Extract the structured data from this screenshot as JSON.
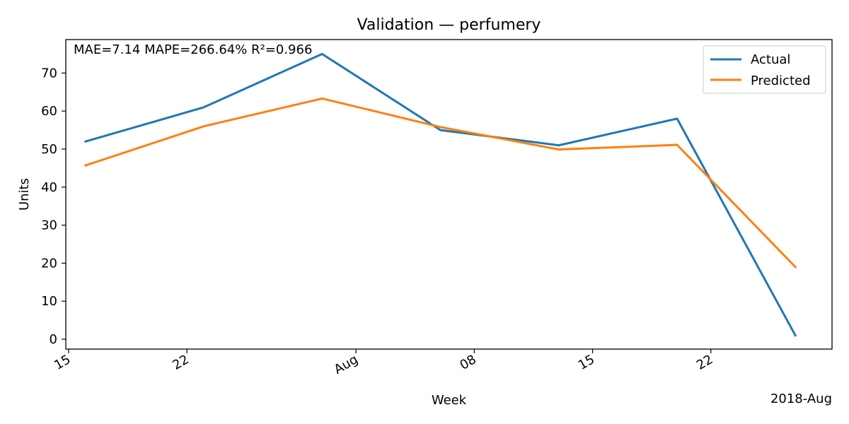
{
  "chart_data": {
    "type": "line",
    "title": "Validation — perfumery",
    "xlabel": "Week",
    "ylabel": "Units",
    "x_offset_label": "2018-Aug",
    "annotation": "MAE=7.14  MAPE=266.64%  R²=0.966",
    "x": [
      "2018-07-16",
      "2018-07-23",
      "2018-07-30",
      "2018-08-06",
      "2018-08-13",
      "2018-08-20",
      "2018-08-27"
    ],
    "xlim": [
      "2018-07-14 20:00",
      "2018-08-29 04:00"
    ],
    "ylim": [
      -2.6,
      78.8
    ],
    "x_ticks": [
      {
        "date": "2018-07-15",
        "label": "15"
      },
      {
        "date": "2018-07-22",
        "label": "22"
      },
      {
        "date": "2018-08-01",
        "label": "Aug"
      },
      {
        "date": "2018-08-08",
        "label": "08"
      },
      {
        "date": "2018-08-15",
        "label": "15"
      },
      {
        "date": "2018-08-22",
        "label": "22"
      }
    ],
    "y_ticks": [
      0,
      10,
      20,
      30,
      40,
      50,
      60,
      70
    ],
    "series": [
      {
        "name": "Actual",
        "color": "#1f77b4",
        "values": [
          52,
          61,
          75,
          55,
          51,
          58,
          1
        ]
      },
      {
        "name": "Predicted",
        "color": "#ff7f0e",
        "values": [
          45.7,
          56,
          63.3,
          55.8,
          49.9,
          51.1,
          19
        ]
      }
    ],
    "legend": "top-right",
    "grid": false
  }
}
